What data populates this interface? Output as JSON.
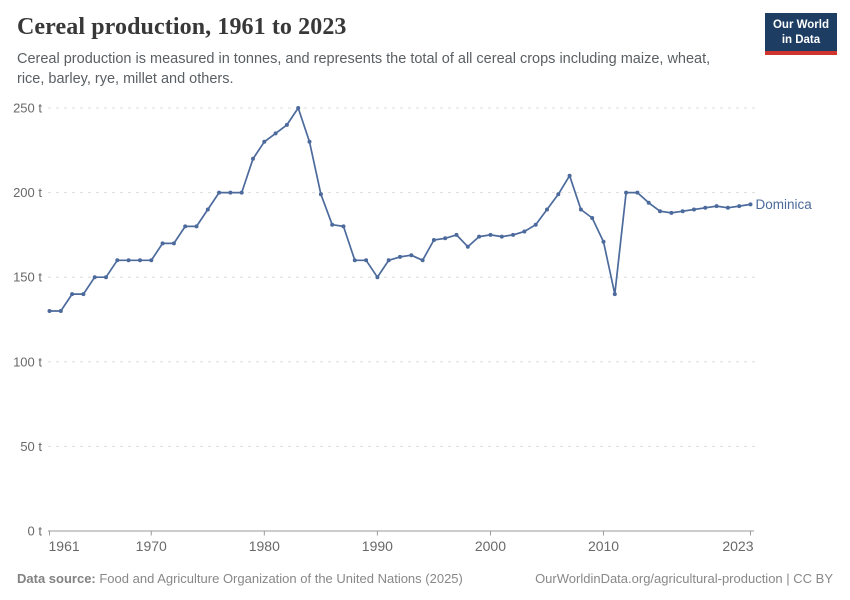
{
  "header": {
    "title": "Cereal production, 1961 to 2023",
    "subtitle": "Cereal production is measured in tonnes, and represents the total of all cereal crops including maize, wheat, rice, barley, rye, millet and others.",
    "logo_line1": "Our World",
    "logo_line2": "in Data"
  },
  "chart_data": {
    "type": "line",
    "title": "Cereal production, 1961 to 2023",
    "xlabel": "",
    "ylabel": "",
    "unit": "t",
    "ylim": [
      0,
      250
    ],
    "xlim": [
      1961,
      2023
    ],
    "grid": "horizontal-dashed",
    "legend_position": "end-of-line-label",
    "yticks": [
      {
        "value": 0,
        "label": "0 t"
      },
      {
        "value": 50,
        "label": "50 t"
      },
      {
        "value": 100,
        "label": "100 t"
      },
      {
        "value": 150,
        "label": "150 t"
      },
      {
        "value": 200,
        "label": "200 t"
      },
      {
        "value": 250,
        "label": "250 t"
      }
    ],
    "xticks": [
      {
        "value": 1961,
        "label": "1961"
      },
      {
        "value": 1970,
        "label": "1970"
      },
      {
        "value": 1980,
        "label": "1980"
      },
      {
        "value": 1990,
        "label": "1990"
      },
      {
        "value": 2000,
        "label": "2000"
      },
      {
        "value": 2010,
        "label": "2010"
      },
      {
        "value": 2023,
        "label": "2023"
      }
    ],
    "series": [
      {
        "name": "Dominica",
        "color": "#4c6a9c",
        "x": [
          1961,
          1962,
          1963,
          1964,
          1965,
          1966,
          1967,
          1968,
          1969,
          1970,
          1971,
          1972,
          1973,
          1974,
          1975,
          1976,
          1977,
          1978,
          1979,
          1980,
          1981,
          1982,
          1983,
          1984,
          1985,
          1986,
          1987,
          1988,
          1989,
          1990,
          1991,
          1992,
          1993,
          1994,
          1995,
          1996,
          1997,
          1998,
          1999,
          2000,
          2001,
          2002,
          2003,
          2004,
          2005,
          2006,
          2007,
          2008,
          2009,
          2010,
          2011,
          2012,
          2013,
          2014,
          2015,
          2016,
          2017,
          2018,
          2019,
          2020,
          2021,
          2022,
          2023
        ],
        "values": [
          130,
          130,
          140,
          140,
          150,
          150,
          160,
          160,
          160,
          160,
          170,
          170,
          180,
          180,
          190,
          200,
          200,
          200,
          220,
          230,
          235,
          240,
          250,
          230,
          199,
          181,
          180,
          160,
          160,
          150,
          160,
          162,
          163,
          160,
          172,
          173,
          175,
          168,
          174,
          175,
          174,
          175,
          177,
          181,
          190,
          199,
          210,
          190,
          185,
          171,
          140,
          200,
          200,
          194,
          189,
          188,
          189,
          190,
          191,
          192,
          191,
          192,
          193
        ]
      }
    ]
  },
  "footer": {
    "source_label": "Data source:",
    "source_text": " Food and Agriculture Organization of the United Nations (2025)",
    "link_text": "OurWorldinData.org/agricultural-production | CC BY"
  },
  "colors": {
    "line": "#4c6a9c",
    "gridline": "#dddddd",
    "axis": "#9a9a9a",
    "axis_label": "#696969",
    "logo_bg": "#1d3d63",
    "logo_red": "#cf342e"
  }
}
